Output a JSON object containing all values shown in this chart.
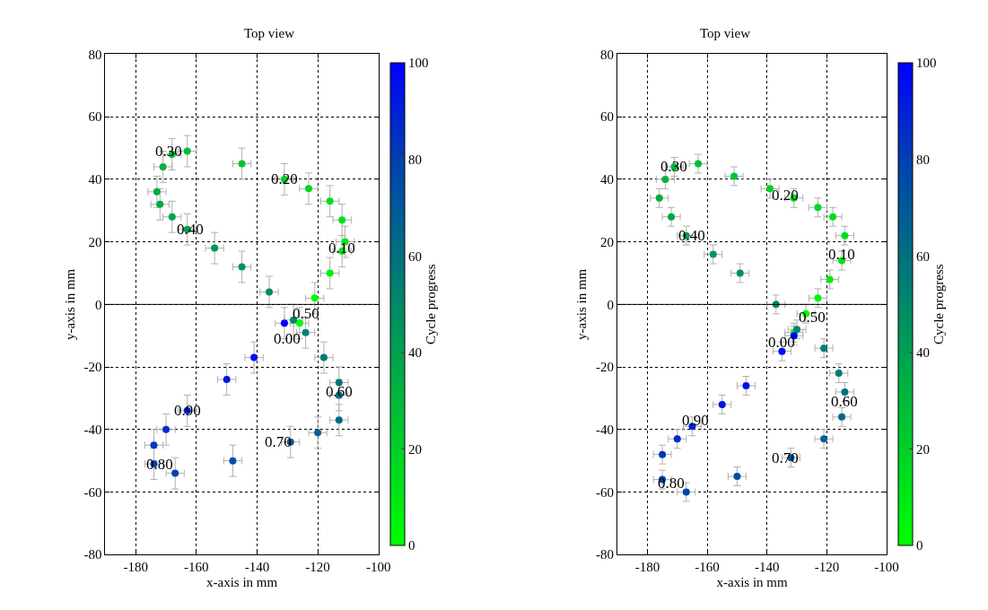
{
  "chart_data": [
    {
      "type": "scatter",
      "title": "Top view",
      "xlabel": "x-axis in mm",
      "ylabel": "y-axis in mm",
      "clabel": "Cycle progress",
      "xlim": [
        -190,
        -100
      ],
      "xticks": [
        -180,
        -160,
        -140,
        -120,
        -100
      ],
      "ylim": [
        -80,
        80
      ],
      "yticks": [
        -80,
        -60,
        -40,
        -20,
        0,
        20,
        40,
        60,
        80
      ],
      "clim": [
        0,
        100
      ],
      "cticks": [
        0,
        20,
        40,
        60,
        80,
        100
      ],
      "grid": true,
      "marker": "circle",
      "ref_lines": [
        {
          "axis": "y",
          "value": 0,
          "color": "#000000"
        }
      ],
      "series": [
        {
          "x": [
            -126,
            -121,
            -116,
            -112,
            -111,
            -112,
            -116,
            -123,
            -131,
            -145,
            -163,
            -168,
            -171,
            -173,
            -172,
            -168,
            -163,
            -154,
            -145,
            -136,
            -128,
            -124,
            -118,
            -113,
            -113,
            -113,
            -120,
            -129,
            -148,
            -167,
            -174,
            -174,
            -170,
            -163,
            -150,
            -141,
            -131
          ],
          "values": [
            -6,
            2,
            10,
            17,
            20,
            27,
            33,
            37,
            40,
            45,
            49,
            48,
            44,
            36,
            32,
            28,
            24,
            18,
            12,
            4,
            -5,
            -9,
            -17,
            -25,
            -29,
            -37,
            -41,
            -44,
            -50,
            -54,
            -51,
            -45,
            -40,
            -34,
            -24,
            -17,
            -6
          ],
          "cvalues": [
            0,
            3,
            6,
            9,
            10,
            12,
            14,
            17,
            20,
            24,
            28,
            30,
            32,
            35,
            36,
            38,
            40,
            43,
            46,
            48,
            50,
            52,
            55,
            58,
            60,
            63,
            66,
            70,
            74,
            78,
            80,
            82,
            85,
            90,
            93,
            96,
            100
          ],
          "errors": [
            5,
            5,
            5,
            5,
            5,
            5,
            5,
            5,
            5,
            5,
            5,
            5,
            5,
            5,
            5,
            5,
            5,
            5,
            5,
            5,
            5,
            5,
            5,
            5,
            5,
            5,
            5,
            5,
            5,
            5,
            5,
            5,
            5,
            5,
            5,
            5,
            5
          ],
          "xerrors": [
            3,
            3,
            3,
            3,
            3,
            3,
            3,
            3,
            3,
            3,
            3,
            3,
            3,
            3,
            3,
            3,
            3,
            3,
            3,
            3,
            3,
            3,
            3,
            3,
            3,
            3,
            3,
            3,
            3,
            3,
            3,
            3,
            3,
            3,
            3,
            3,
            3
          ]
        }
      ],
      "annotations": [
        {
          "text": "0.00",
          "x": -130,
          "y": -11
        },
        {
          "text": "0.10",
          "x": -112,
          "y": 18
        },
        {
          "text": "0.20",
          "x": -131,
          "y": 40
        },
        {
          "text": "0.30",
          "x": -169,
          "y": 49
        },
        {
          "text": "0.40",
          "x": -162,
          "y": 24
        },
        {
          "text": "0.50",
          "x": -124,
          "y": -3
        },
        {
          "text": "0.60",
          "x": -113,
          "y": -28
        },
        {
          "text": "0.70",
          "x": -133,
          "y": -44
        },
        {
          "text": "0.80",
          "x": -172,
          "y": -51
        },
        {
          "text": "0.90",
          "x": -163,
          "y": -34
        }
      ]
    },
    {
      "type": "scatter",
      "title": "Top view",
      "xlabel": "x-axis in mm",
      "ylabel": "y-axis in mm",
      "clabel": "Cycle progress",
      "xlim": [
        -190,
        -100
      ],
      "xticks": [
        -180,
        -160,
        -140,
        -120,
        -100
      ],
      "ylim": [
        -80,
        80
      ],
      "yticks": [
        -80,
        -60,
        -40,
        -20,
        0,
        20,
        40,
        60,
        80
      ],
      "clim": [
        0,
        100
      ],
      "cticks": [
        0,
        20,
        40,
        60,
        80,
        100
      ],
      "grid": true,
      "marker": "circle",
      "ref_lines": [
        {
          "axis": "y",
          "value": 0,
          "color": "#000000"
        }
      ],
      "series": [
        {
          "x": [
            -131,
            -127,
            -123,
            -119,
            -115,
            -114,
            -118,
            -123,
            -131,
            -139,
            -151,
            -163,
            -171,
            -174,
            -176,
            -172,
            -167,
            -158,
            -149,
            -137,
            -130,
            -121,
            -116,
            -114,
            -115,
            -121,
            -132,
            -150,
            -167,
            -175,
            -175,
            -170,
            -165,
            -155,
            -147,
            -135,
            -131
          ],
          "values": [
            -9,
            -3,
            2,
            8,
            14,
            22,
            28,
            31,
            34,
            37,
            41,
            45,
            44,
            40,
            34,
            28,
            22,
            16,
            10,
            0,
            -8,
            -14,
            -22,
            -28,
            -36,
            -43,
            -49,
            -55,
            -60,
            -56,
            -48,
            -43,
            -39,
            -32,
            -26,
            -15,
            -10
          ],
          "cvalues": [
            0,
            3,
            5,
            7,
            10,
            12,
            14,
            16,
            18,
            20,
            24,
            27,
            30,
            32,
            34,
            37,
            40,
            43,
            46,
            48,
            50,
            53,
            56,
            60,
            63,
            66,
            70,
            74,
            78,
            80,
            83,
            86,
            90,
            93,
            95,
            98,
            100
          ],
          "errors": [
            3,
            3,
            3,
            3,
            3,
            3,
            3,
            3,
            3,
            3,
            3,
            3,
            3,
            3,
            3,
            3,
            3,
            3,
            3,
            3,
            3,
            3,
            3,
            3,
            3,
            3,
            3,
            3,
            3,
            3,
            3,
            3,
            3,
            3,
            3,
            3,
            3
          ],
          "xerrors": [
            3,
            3,
            3,
            3,
            3,
            3,
            3,
            3,
            3,
            3,
            3,
            3,
            3,
            3,
            3,
            3,
            3,
            3,
            3,
            3,
            3,
            3,
            3,
            3,
            3,
            3,
            3,
            3,
            3,
            3,
            3,
            3,
            3,
            3,
            3,
            3,
            3
          ]
        }
      ],
      "annotations": [
        {
          "text": "0.00",
          "x": -135,
          "y": -12
        },
        {
          "text": "0.10",
          "x": -115,
          "y": 16
        },
        {
          "text": "0.20",
          "x": -134,
          "y": 35
        },
        {
          "text": "0.30",
          "x": -171,
          "y": 44
        },
        {
          "text": "0.40",
          "x": -165,
          "y": 22
        },
        {
          "text": "0.50",
          "x": -125,
          "y": -4
        },
        {
          "text": "0.60",
          "x": -114,
          "y": -31
        },
        {
          "text": "0.70",
          "x": -134,
          "y": -49
        },
        {
          "text": "0.80",
          "x": -172,
          "y": -57
        },
        {
          "text": "0.90",
          "x": -164,
          "y": -37
        }
      ]
    }
  ]
}
